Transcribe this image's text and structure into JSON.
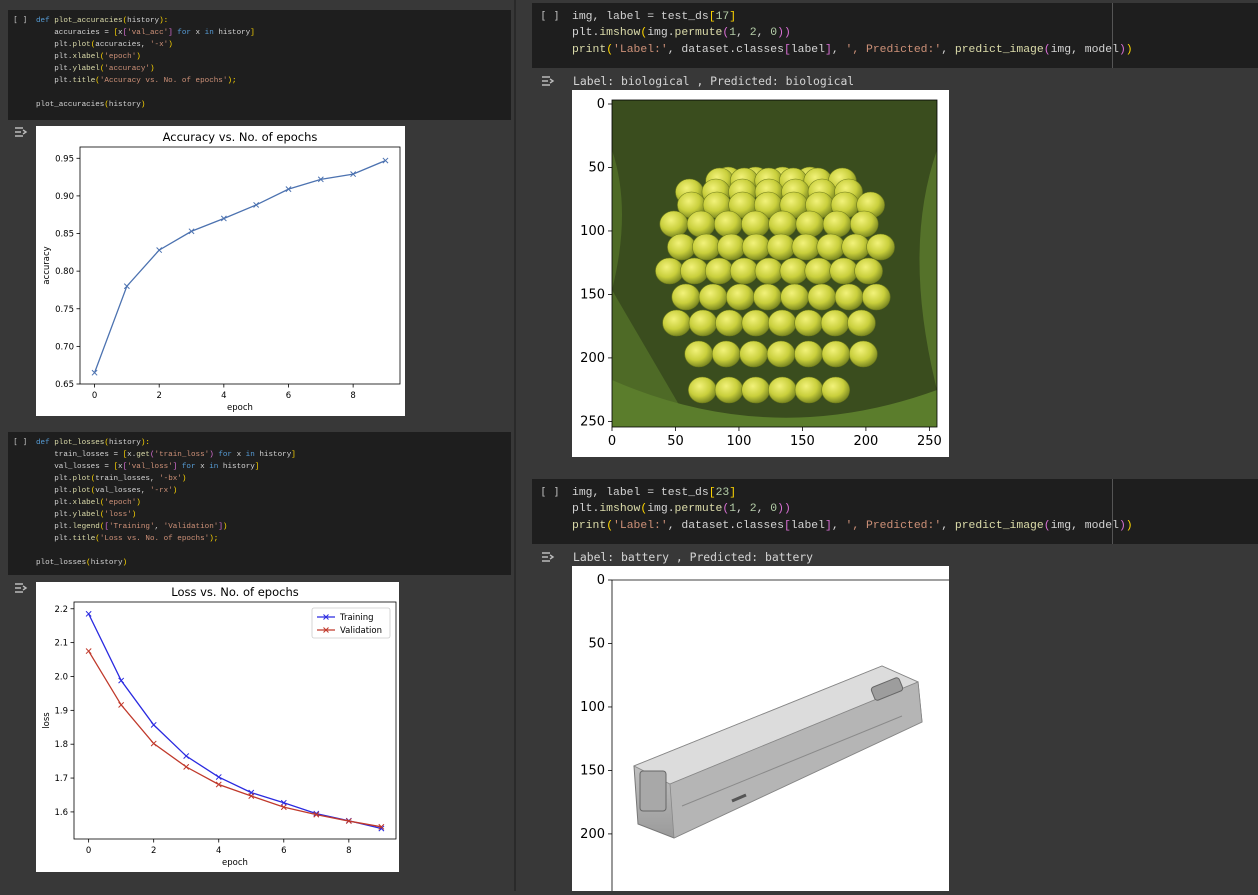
{
  "cells": {
    "acc_code": {
      "run_label": "[ ]",
      "lines": [
        [
          [
            "kw",
            "def "
          ],
          [
            "fn",
            "plot_accuracies"
          ],
          [
            "br",
            "("
          ],
          [
            "",
            "history"
          ],
          [
            "br",
            "):"
          ]
        ],
        [
          [
            "",
            "    accuracies = "
          ],
          [
            "br",
            "["
          ],
          [
            "",
            "x"
          ],
          [
            "bk",
            "["
          ],
          [
            "st",
            "'val_acc'"
          ],
          [
            "bk",
            "]"
          ],
          [
            "kw",
            " for "
          ],
          [
            "",
            "x"
          ],
          [
            "kw",
            " in "
          ],
          [
            "",
            "history"
          ],
          [
            "br",
            "]"
          ]
        ],
        [
          [
            "",
            "    plt."
          ],
          [
            "fn",
            "plot"
          ],
          [
            "br",
            "("
          ],
          [
            "",
            "accuracies, "
          ],
          [
            "st",
            "'-x'"
          ],
          [
            "br",
            ")"
          ]
        ],
        [
          [
            "",
            "    plt."
          ],
          [
            "fn",
            "xlabel"
          ],
          [
            "br",
            "("
          ],
          [
            "st",
            "'epoch'"
          ],
          [
            "br",
            ")"
          ]
        ],
        [
          [
            "",
            "    plt."
          ],
          [
            "fn",
            "ylabel"
          ],
          [
            "br",
            "("
          ],
          [
            "st",
            "'accuracy'"
          ],
          [
            "br",
            ")"
          ]
        ],
        [
          [
            "",
            "    plt."
          ],
          [
            "fn",
            "title"
          ],
          [
            "br",
            "("
          ],
          [
            "st",
            "'Accuracy vs. No. of epochs'"
          ],
          [
            "br",
            ");"
          ]
        ],
        [
          [
            "",
            ""
          ]
        ],
        [
          [
            "",
            "plot_accuracies"
          ],
          [
            "br",
            "("
          ],
          [
            "",
            "history"
          ],
          [
            "br",
            ")"
          ]
        ]
      ]
    },
    "loss_code": {
      "run_label": "[ ]",
      "lines": [
        [
          [
            "kw",
            "def "
          ],
          [
            "fn",
            "plot_losses"
          ],
          [
            "br",
            "("
          ],
          [
            "",
            "history"
          ],
          [
            "br",
            "):"
          ]
        ],
        [
          [
            "",
            "    train_losses = "
          ],
          [
            "br",
            "["
          ],
          [
            "",
            "x."
          ],
          [
            "fn",
            "get"
          ],
          [
            "bk",
            "("
          ],
          [
            "st",
            "'train_loss'"
          ],
          [
            "bk",
            ")"
          ],
          [
            "kw",
            " for "
          ],
          [
            "",
            "x"
          ],
          [
            "kw",
            " in "
          ],
          [
            "",
            "history"
          ],
          [
            "br",
            "]"
          ]
        ],
        [
          [
            "",
            "    val_losses = "
          ],
          [
            "br",
            "["
          ],
          [
            "",
            "x"
          ],
          [
            "bk",
            "["
          ],
          [
            "st",
            "'val_loss'"
          ],
          [
            "bk",
            "]"
          ],
          [
            "kw",
            " for "
          ],
          [
            "",
            "x"
          ],
          [
            "kw",
            " in "
          ],
          [
            "",
            "history"
          ],
          [
            "br",
            "]"
          ]
        ],
        [
          [
            "",
            "    plt."
          ],
          [
            "fn",
            "plot"
          ],
          [
            "br",
            "("
          ],
          [
            "",
            "train_losses, "
          ],
          [
            "st",
            "'-bx'"
          ],
          [
            "br",
            ")"
          ]
        ],
        [
          [
            "",
            "    plt."
          ],
          [
            "fn",
            "plot"
          ],
          [
            "br",
            "("
          ],
          [
            "",
            "val_losses, "
          ],
          [
            "st",
            "'-rx'"
          ],
          [
            "br",
            ")"
          ]
        ],
        [
          [
            "",
            "    plt."
          ],
          [
            "fn",
            "xlabel"
          ],
          [
            "br",
            "("
          ],
          [
            "st",
            "'epoch'"
          ],
          [
            "br",
            ")"
          ]
        ],
        [
          [
            "",
            "    plt."
          ],
          [
            "fn",
            "ylabel"
          ],
          [
            "br",
            "("
          ],
          [
            "st",
            "'loss'"
          ],
          [
            "br",
            ")"
          ]
        ],
        [
          [
            "",
            "    plt."
          ],
          [
            "fn",
            "legend"
          ],
          [
            "br",
            "("
          ],
          [
            "bk",
            "["
          ],
          [
            "st",
            "'Training'"
          ],
          [
            "",
            ", "
          ],
          [
            "st",
            "'Validation'"
          ],
          [
            "bk",
            "]"
          ],
          [
            "br",
            ")"
          ]
        ],
        [
          [
            "",
            "    plt."
          ],
          [
            "fn",
            "title"
          ],
          [
            "br",
            "("
          ],
          [
            "st",
            "'Loss vs. No. of epochs'"
          ],
          [
            "br",
            ");"
          ]
        ],
        [
          [
            "",
            ""
          ]
        ],
        [
          [
            "",
            "plot_losses"
          ],
          [
            "br",
            "("
          ],
          [
            "",
            "history"
          ],
          [
            "br",
            ")"
          ]
        ]
      ]
    },
    "pred1_code": {
      "run_label": "[ ]",
      "lines": [
        [
          [
            "",
            "img, label = test_ds"
          ],
          [
            "br",
            "["
          ],
          [
            "nu",
            "17"
          ],
          [
            "br",
            "]"
          ]
        ],
        [
          [
            "",
            "plt."
          ],
          [
            "fn",
            "imshow"
          ],
          [
            "br",
            "("
          ],
          [
            "",
            "img."
          ],
          [
            "fn",
            "permute"
          ],
          [
            "bk",
            "("
          ],
          [
            "nu",
            "1"
          ],
          [
            "",
            ", "
          ],
          [
            "nu",
            "2"
          ],
          [
            "",
            ", "
          ],
          [
            "nu",
            "0"
          ],
          [
            "bk",
            "))"
          ]
        ],
        [
          [
            "fn",
            "print"
          ],
          [
            "br",
            "("
          ],
          [
            "st",
            "'Label:'"
          ],
          [
            "",
            ", dataset.classes"
          ],
          [
            "bk",
            "["
          ],
          [
            "",
            "label"
          ],
          [
            "bk",
            "]"
          ],
          [
            "",
            ", "
          ],
          [
            "st",
            "', Predicted:'"
          ],
          [
            "",
            ", "
          ],
          [
            "fn",
            "predict_image"
          ],
          [
            "bk",
            "("
          ],
          [
            "",
            "img, model"
          ],
          [
            "bk",
            ")"
          ],
          [
            "br",
            ")"
          ]
        ]
      ]
    },
    "pred2_code": {
      "run_label": "[ ]",
      "lines": [
        [
          [
            "",
            "img, label = test_ds"
          ],
          [
            "br",
            "["
          ],
          [
            "nu",
            "23"
          ],
          [
            "br",
            "]"
          ]
        ],
        [
          [
            "",
            "plt."
          ],
          [
            "fn",
            "imshow"
          ],
          [
            "br",
            "("
          ],
          [
            "",
            "img."
          ],
          [
            "fn",
            "permute"
          ],
          [
            "bk",
            "("
          ],
          [
            "nu",
            "1"
          ],
          [
            "",
            ", "
          ],
          [
            "nu",
            "2"
          ],
          [
            "",
            ", "
          ],
          [
            "nu",
            "0"
          ],
          [
            "bk",
            "))"
          ]
        ],
        [
          [
            "fn",
            "print"
          ],
          [
            "br",
            "("
          ],
          [
            "st",
            "'Label:'"
          ],
          [
            "",
            ", dataset.classes"
          ],
          [
            "bk",
            "["
          ],
          [
            "",
            "label"
          ],
          [
            "bk",
            "]"
          ],
          [
            "",
            ", "
          ],
          [
            "st",
            "', Predicted:'"
          ],
          [
            "",
            ", "
          ],
          [
            "fn",
            "predict_image"
          ],
          [
            "bk",
            "("
          ],
          [
            "",
            "img, model"
          ],
          [
            "bk",
            ")"
          ],
          [
            "br",
            ")"
          ]
        ]
      ]
    }
  },
  "outputs": {
    "pred1_text": "Label: biological , Predicted: biological",
    "pred2_text": "Label: battery , Predicted: battery",
    "pred1_image_ticks": {
      "x": [
        "0",
        "50",
        "100",
        "150",
        "200",
        "250"
      ],
      "y": [
        "0",
        "50",
        "100",
        "150",
        "200",
        "250"
      ]
    },
    "pred2_image_ticks": {
      "y": [
        "0",
        "50",
        "100",
        "150",
        "200"
      ]
    }
  },
  "chart_data": [
    {
      "type": "line",
      "title": "Accuracy vs. No. of epochs",
      "xlabel": "epoch",
      "ylabel": "accuracy",
      "xlim": [
        -0.45,
        9.45
      ],
      "ylim": [
        0.65,
        0.965
      ],
      "xticks": [
        "0",
        "2",
        "4",
        "6",
        "8"
      ],
      "yticks": [
        "0.65",
        "0.70",
        "0.75",
        "0.80",
        "0.85",
        "0.90",
        "0.95"
      ],
      "x": [
        0,
        1,
        2,
        3,
        4,
        5,
        6,
        7,
        8,
        9
      ],
      "series": [
        {
          "values": [
            0.665,
            0.78,
            0.828,
            0.853,
            0.87,
            0.888,
            0.909,
            0.922,
            0.929,
            0.947
          ],
          "color": "#4c72b0",
          "marker": "x"
        }
      ],
      "grid": false
    },
    {
      "type": "line",
      "title": "Loss vs. No. of epochs",
      "xlabel": "epoch",
      "ylabel": "loss",
      "xlim": [
        -0.45,
        9.45
      ],
      "ylim": [
        1.52,
        2.22
      ],
      "xticks": [
        "0",
        "2",
        "4",
        "6",
        "8"
      ],
      "yticks": [
        "1.6",
        "1.7",
        "1.8",
        "1.9",
        "2.0",
        "2.1",
        "2.2"
      ],
      "x": [
        0,
        1,
        2,
        3,
        4,
        5,
        6,
        7,
        8,
        9
      ],
      "series": [
        {
          "name": "Training",
          "values": [
            2.185,
            1.988,
            1.857,
            1.765,
            1.703,
            1.657,
            1.627,
            1.595,
            1.574,
            1.551
          ],
          "color": "#2a2ae0",
          "marker": "x"
        },
        {
          "name": "Validation",
          "values": [
            2.075,
            1.916,
            1.802,
            1.733,
            1.681,
            1.647,
            1.614,
            1.592,
            1.573,
            1.556
          ],
          "color": "#c0392b",
          "marker": "x"
        }
      ],
      "legend": "top-right",
      "grid": false
    }
  ],
  "icons": {
    "output_toggle": "output-toggle-icon"
  }
}
